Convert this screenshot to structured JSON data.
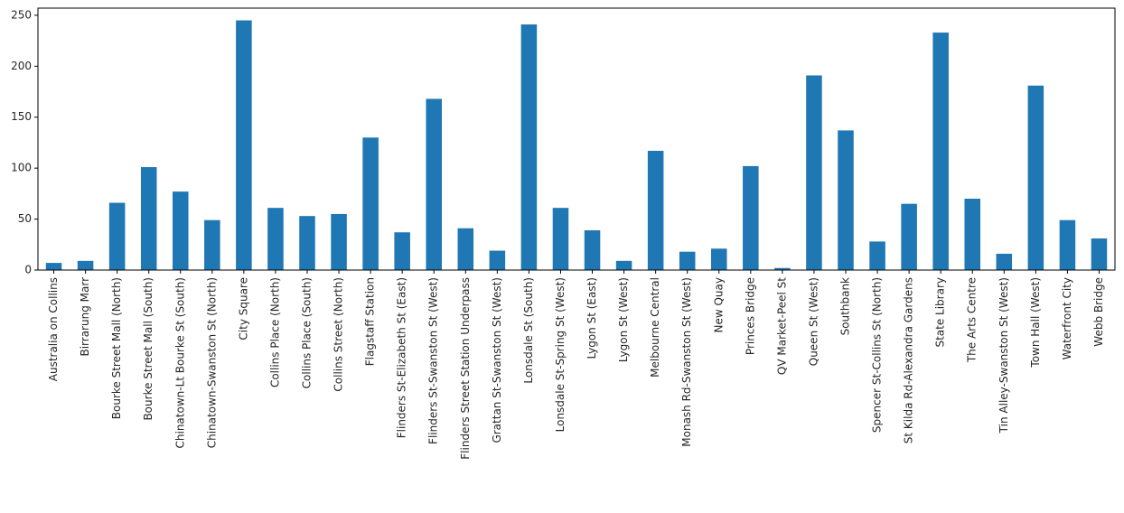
{
  "chart_data": {
    "type": "bar",
    "title": "",
    "xlabel": "",
    "ylabel": "",
    "ylim": [
      0,
      257
    ],
    "yticks": [
      0,
      50,
      100,
      150,
      200,
      250
    ],
    "grid": false,
    "bar_color": "#1f77b4",
    "categories": [
      "Australia on Collins",
      "Birrarung Marr",
      "Bourke Street Mall (North)",
      "Bourke Street Mall (South)",
      "Chinatown-Lt Bourke St (South)",
      "Chinatown-Swanston St (North)",
      "City Square",
      "Collins Place (North)",
      "Collins Place (South)",
      "Collins Street (North)",
      "Flagstaff Station",
      "Flinders St-Elizabeth St (East)",
      "Flinders St-Swanston St (West)",
      "Flinders Street Station Underpass",
      "Grattan St-Swanston St (West)",
      "Lonsdale St (South)",
      "Lonsdale St-Spring St (West)",
      "Lygon St (East)",
      "Lygon St (West)",
      "Melbourne Central",
      "Monash Rd-Swanston St (West)",
      "New Quay",
      "Princes Bridge",
      "QV Market-Peel St",
      "Queen St (West)",
      "Southbank",
      "Spencer St-Collins St (North)",
      "St Kilda Rd-Alexandra Gardens",
      "State Library",
      "The Arts Centre",
      "Tin Alley-Swanston St (West)",
      "Town Hall (West)",
      "Waterfront City",
      "Webb Bridge"
    ],
    "values": [
      7,
      9,
      66,
      101,
      77,
      49,
      245,
      61,
      53,
      55,
      130,
      37,
      168,
      41,
      19,
      241,
      61,
      39,
      9,
      117,
      18,
      21,
      102,
      2,
      191,
      137,
      28,
      65,
      233,
      70,
      16,
      181,
      49,
      31
    ]
  }
}
